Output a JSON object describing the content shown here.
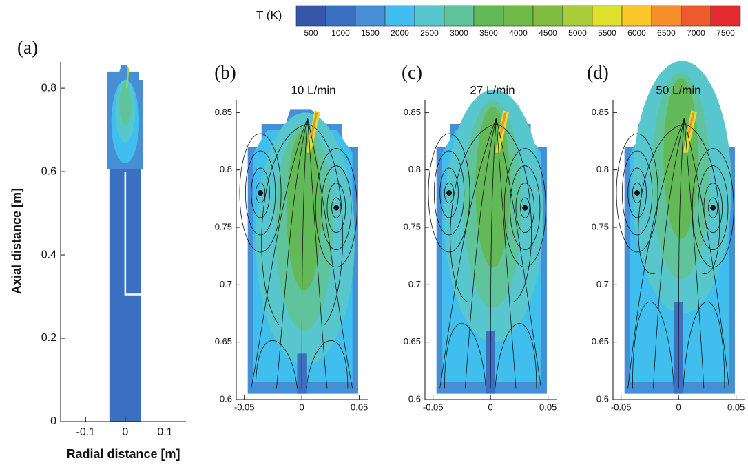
{
  "colorbar": {
    "label": "T (K)",
    "levels": [
      500,
      1000,
      1500,
      2000,
      2500,
      3000,
      3500,
      4000,
      4500,
      5000,
      5500,
      6000,
      6500,
      7000,
      7500
    ],
    "colors": [
      "#3656a8",
      "#3a6fc2",
      "#478fd5",
      "#40bfef",
      "#58c7cd",
      "#5fc39b",
      "#63b957",
      "#6fb947",
      "#7fbc40",
      "#a9cc3b",
      "#dfe12e",
      "#fcc72d",
      "#f58f2b",
      "#ee5a2d",
      "#e32a2f"
    ]
  },
  "chart_data": [
    {
      "type": "contour",
      "panel_label": "(a)",
      "xlabel": "Radial distance [m]",
      "ylabel": "Axial distance [m]",
      "xlim": [
        -0.163,
        0.153
      ],
      "ylim": [
        0,
        0.863
      ],
      "xticks": [
        -0.1,
        0,
        0.1
      ],
      "yticks": [
        0,
        0.2,
        0.4,
        0.6,
        0.8
      ]
    },
    {
      "type": "contour",
      "panel_label": "(b)",
      "title": "10 L/min",
      "xlim": [
        -0.057,
        0.058
      ],
      "ylim": [
        0.6,
        0.861
      ],
      "xticks": [
        -0.05,
        0,
        0.05
      ],
      "yticks": [
        0.6,
        0.65,
        0.7,
        0.75,
        0.8,
        0.85
      ]
    },
    {
      "type": "contour",
      "panel_label": "(c)",
      "title": "27 L/min",
      "xlim": [
        -0.057,
        0.058
      ],
      "ylim": [
        0.6,
        0.861
      ],
      "xticks": [
        -0.05,
        0,
        0.05
      ],
      "yticks": [
        0.6,
        0.65,
        0.7,
        0.75,
        0.8,
        0.85
      ]
    },
    {
      "type": "contour",
      "panel_label": "(d)",
      "title": "50 L/min",
      "xlim": [
        -0.057,
        0.058
      ],
      "ylim": [
        0.6,
        0.861
      ],
      "xticks": [
        -0.05,
        0,
        0.05
      ],
      "yticks": [
        0.6,
        0.65,
        0.7,
        0.75,
        0.8,
        0.85
      ]
    }
  ]
}
